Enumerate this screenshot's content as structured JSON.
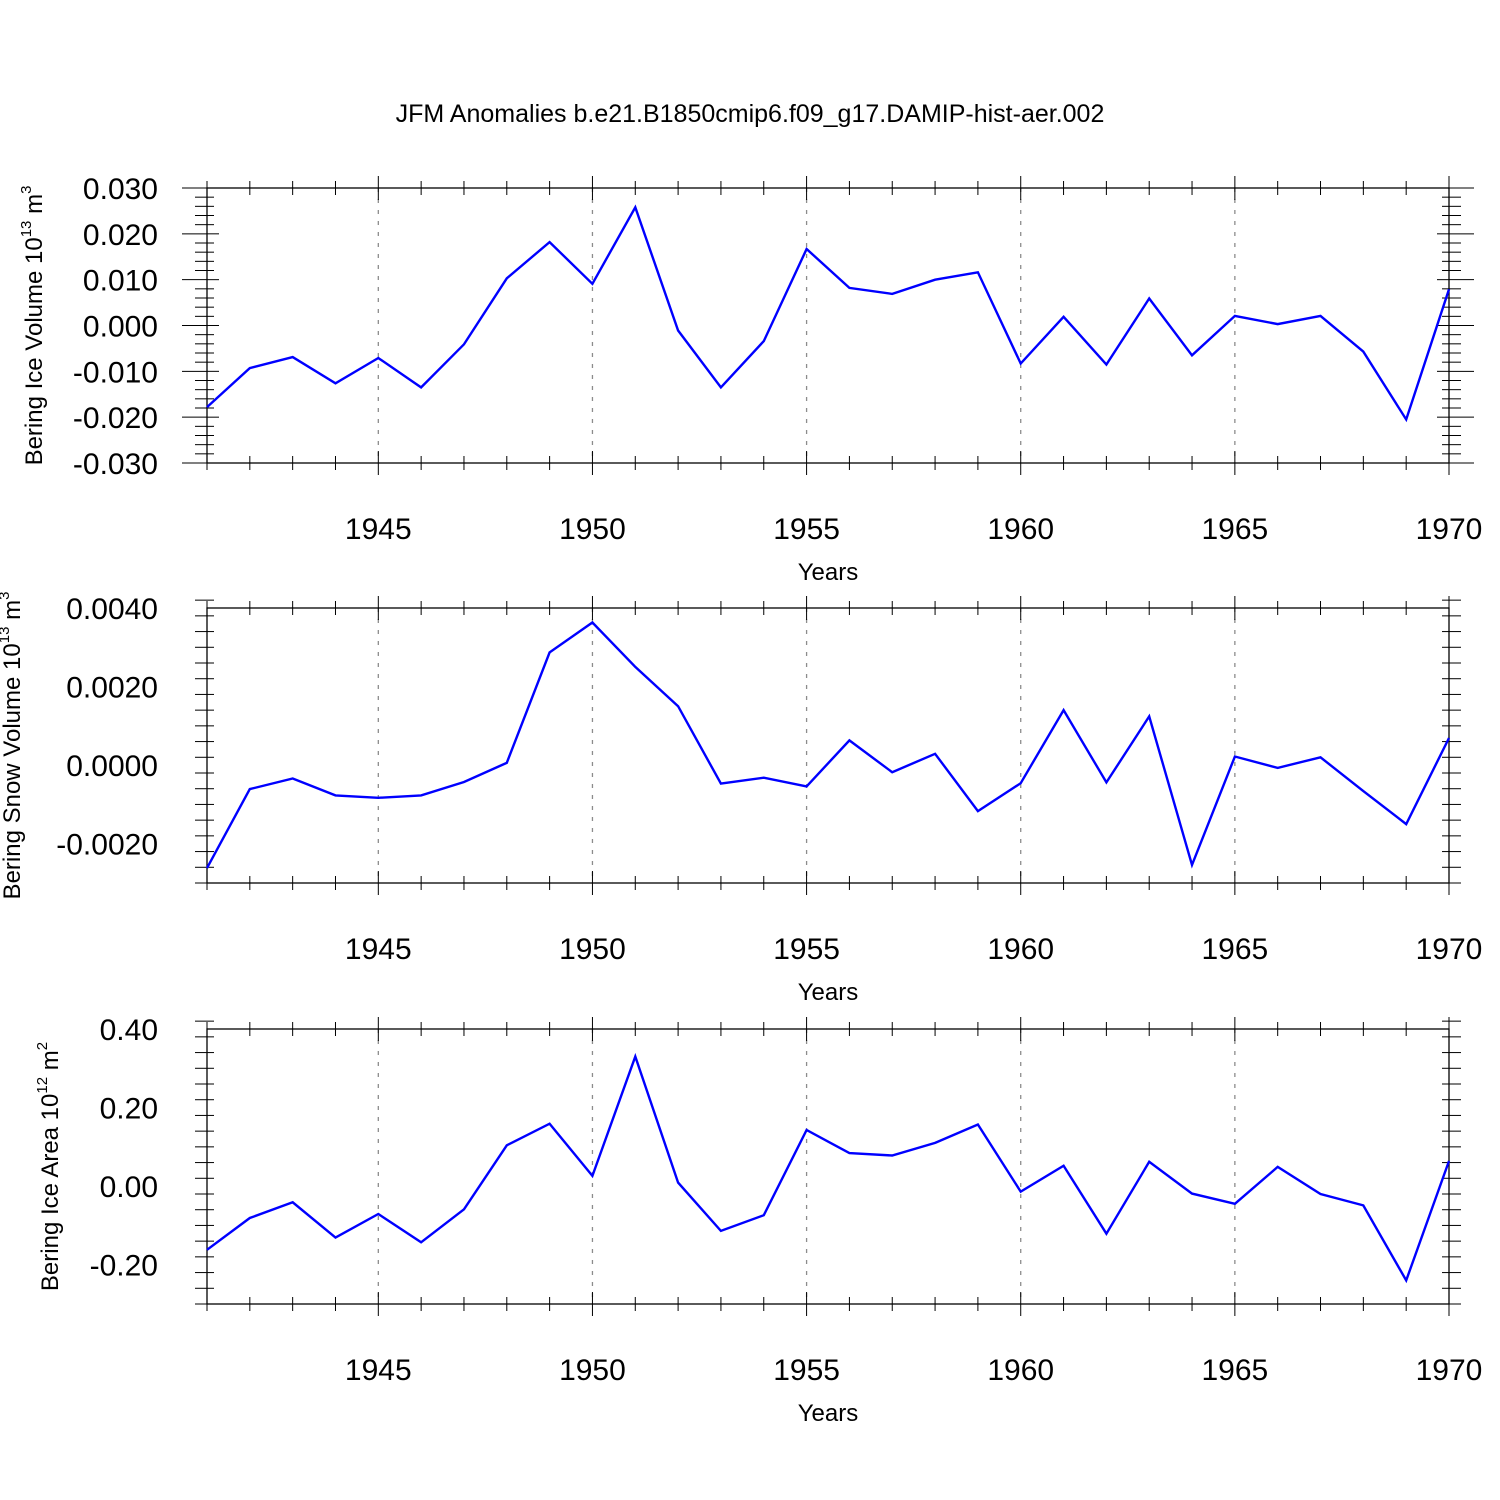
{
  "figure_title": "JFM Anomalies b.e21.B1850cmip6.f09_g17.DAMIP-hist-aer.002",
  "colors": {
    "series": "#0000ff",
    "axis": "#000000",
    "grid": "#8c8c8c"
  },
  "chart_data": [
    {
      "type": "line",
      "title": "JFM Anomalies b.e21.B1850cmip6.f09_g17.DAMIP-hist-aer.002",
      "xlabel": "Years",
      "ylabel": {
        "prefix": "Bering Ice Volume 10",
        "exp1": "13",
        "mid": " m",
        "exp2": "3"
      },
      "xlim": [
        1941,
        1970
      ],
      "ylim": [
        -0.03,
        0.03
      ],
      "yticks": [
        -0.03,
        -0.02,
        -0.01,
        0.0,
        0.01,
        0.02,
        0.03
      ],
      "ytick_labels": [
        "-0.030",
        "-0.020",
        "-0.010",
        "0.000",
        "0.010",
        "0.020",
        "0.030"
      ],
      "xticks": [
        1945,
        1950,
        1955,
        1960,
        1965,
        1970
      ],
      "xtick_labels": [
        "1945",
        "1950",
        "1955",
        "1960",
        "1965",
        "1970"
      ],
      "grid_x": [
        1945,
        1950,
        1955,
        1960,
        1965
      ],
      "series": [
        {
          "name": "Bering Ice Volume",
          "x": [
            1941,
            1942,
            1943,
            1944,
            1945,
            1946,
            1947,
            1948,
            1949,
            1950,
            1951,
            1952,
            1953,
            1954,
            1955,
            1956,
            1957,
            1958,
            1959,
            1960,
            1961,
            1962,
            1963,
            1964,
            1965,
            1966,
            1967,
            1968,
            1969,
            1970
          ],
          "values": [
            -0.0178,
            -0.0093,
            -0.0069,
            -0.0126,
            -0.0071,
            -0.0135,
            -0.0041,
            0.0103,
            0.0182,
            0.0091,
            0.0258,
            -0.0011,
            -0.0135,
            -0.0034,
            0.0167,
            0.0082,
            0.0069,
            0.01,
            0.0116,
            -0.0083,
            0.0019,
            -0.0085,
            0.0059,
            -0.0065,
            0.0021,
            0.0003,
            0.0021,
            -0.0057,
            -0.0205,
            0.0079
          ]
        }
      ]
    },
    {
      "type": "line",
      "xlabel": "Years",
      "ylabel": {
        "prefix": "Bering Snow Volume 10",
        "exp1": "13",
        "mid": " m",
        "exp2": "3"
      },
      "xlim": [
        1941,
        1970
      ],
      "ylim": [
        -0.003,
        0.004
      ],
      "yticks": [
        -0.002,
        0.0,
        0.002,
        0.004
      ],
      "ytick_labels": [
        "-0.0020",
        "0.0000",
        "0.0020",
        "0.0040"
      ],
      "xticks": [
        1945,
        1950,
        1955,
        1960,
        1965,
        1970
      ],
      "xtick_labels": [
        "1945",
        "1950",
        "1955",
        "1960",
        "1965",
        "1970"
      ],
      "grid_x": [
        1945,
        1950,
        1955,
        1960,
        1965
      ],
      "series": [
        {
          "name": "Bering Snow Volume",
          "x": [
            1941,
            1942,
            1943,
            1944,
            1945,
            1946,
            1947,
            1948,
            1949,
            1950,
            1951,
            1952,
            1953,
            1954,
            1955,
            1956,
            1957,
            1958,
            1959,
            1960,
            1961,
            1962,
            1963,
            1964,
            1965,
            1966,
            1967,
            1968,
            1969,
            1970
          ],
          "values": [
            -0.00262,
            -0.00061,
            -0.00034,
            -0.00077,
            -0.00083,
            -0.00077,
            -0.00043,
            6e-05,
            0.00287,
            0.00363,
            0.0025,
            0.0015,
            -0.00047,
            -0.00032,
            -0.00054,
            0.00063,
            -0.00018,
            0.00029,
            -0.00117,
            -0.00046,
            0.0014,
            -0.00044,
            0.00124,
            -0.00254,
            0.00022,
            -7e-05,
            0.0002,
            -0.00066,
            -0.0015,
            0.00069
          ]
        }
      ]
    },
    {
      "type": "line",
      "xlabel": "Years",
      "ylabel": {
        "prefix": "Bering Ice Area 10",
        "exp1": "12",
        "mid": " m",
        "exp2": "2"
      },
      "xlim": [
        1941,
        1970
      ],
      "ylim": [
        -0.3,
        0.4
      ],
      "yticks": [
        -0.2,
        0.0,
        0.2,
        0.4
      ],
      "ytick_labels": [
        "-0.20",
        "0.00",
        "0.20",
        "0.40"
      ],
      "xticks": [
        1945,
        1950,
        1955,
        1960,
        1965,
        1970
      ],
      "xtick_labels": [
        "1945",
        "1950",
        "1955",
        "1960",
        "1965",
        "1970"
      ],
      "grid_x": [
        1945,
        1950,
        1955,
        1960,
        1965
      ],
      "series": [
        {
          "name": "Bering Ice Area",
          "x": [
            1941,
            1942,
            1943,
            1944,
            1945,
            1946,
            1947,
            1948,
            1949,
            1950,
            1951,
            1952,
            1953,
            1954,
            1955,
            1956,
            1957,
            1958,
            1959,
            1960,
            1961,
            1962,
            1963,
            1964,
            1965,
            1966,
            1967,
            1968,
            1969,
            1970
          ],
          "values": [
            -0.162,
            -0.081,
            -0.041,
            -0.131,
            -0.071,
            -0.143,
            -0.059,
            0.104,
            0.159,
            0.026,
            0.33,
            0.009,
            -0.114,
            -0.074,
            0.143,
            0.084,
            0.078,
            0.11,
            0.157,
            -0.014,
            0.052,
            -0.121,
            0.062,
            -0.019,
            -0.045,
            0.049,
            -0.02,
            -0.049,
            -0.24,
            0.064
          ]
        }
      ]
    }
  ]
}
